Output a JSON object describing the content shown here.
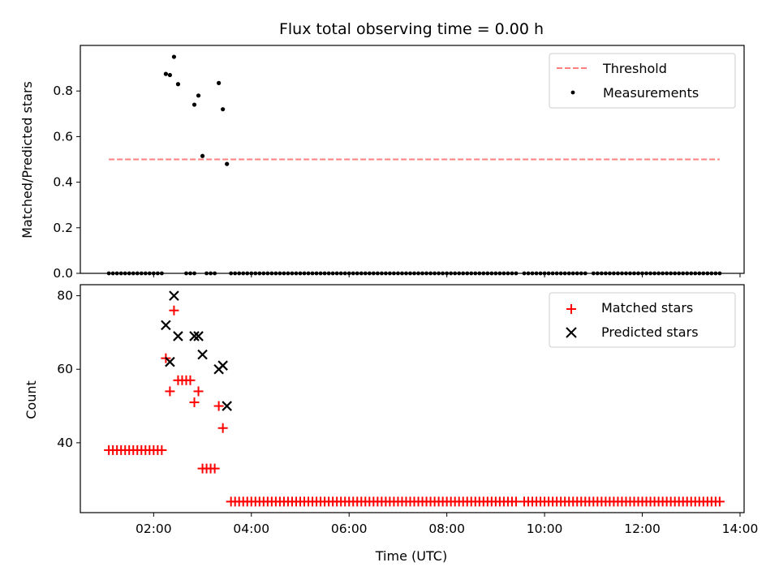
{
  "chart_data": [
    {
      "type": "scatter",
      "title": "Flux total observing time = 0.00 h",
      "xlabel": "",
      "ylabel": "Matched/Predicted stars",
      "ylim": [
        0.0,
        1.0
      ],
      "yticks": [
        "0.0",
        "0.2",
        "0.4",
        "0.6",
        "0.8"
      ],
      "legend": {
        "position": "top-right",
        "labels": [
          "Threshold",
          "Measurements"
        ]
      },
      "threshold": {
        "name": "Threshold",
        "value": 0.5,
        "x_start": "01:05",
        "x_end": "13:35",
        "color": "#ff7f7f"
      },
      "series": [
        {
          "name": "Measurements",
          "color": "#000000",
          "points": [
            [
              "02:15",
              0.875
            ],
            [
              "02:20",
              0.87
            ],
            [
              "02:25",
              0.95
            ],
            [
              "02:30",
              0.83
            ],
            [
              "02:50",
              0.74
            ],
            [
              "02:55",
              0.78
            ],
            [
              "03:00",
              0.515
            ],
            [
              "03:20",
              0.835
            ],
            [
              "03:25",
              0.72
            ],
            [
              "03:30",
              0.48
            ]
          ],
          "zero_segments": [
            [
              "01:05",
              "02:10"
            ],
            [
              "02:40",
              "02:50"
            ],
            [
              "03:05",
              "03:15"
            ],
            [
              "03:35",
              "09:25"
            ],
            [
              "09:35",
              "09:40"
            ],
            [
              "09:45",
              "09:55"
            ],
            [
              "10:00",
              "10:50"
            ],
            [
              "11:00",
              "11:35"
            ],
            [
              "11:40",
              "12:40"
            ],
            [
              "12:45",
              "13:35"
            ]
          ],
          "zero_step_minutes": 5
        }
      ]
    },
    {
      "type": "scatter",
      "xlabel": "Time (UTC)",
      "ylabel": "Count",
      "ylim": [
        21,
        83
      ],
      "xlim": [
        "00:30",
        "14:05"
      ],
      "xticks": [
        "02:00",
        "04:00",
        "06:00",
        "08:00",
        "10:00",
        "12:00",
        "14:00"
      ],
      "yticks": [
        "40",
        "60",
        "80"
      ],
      "legend": {
        "position": "top-right",
        "labels": [
          "Matched stars",
          "Predicted stars"
        ]
      },
      "series": [
        {
          "name": "Matched stars",
          "marker": "plus",
          "color": "#ff0000",
          "points": [
            [
              "02:15",
              63
            ],
            [
              "02:20",
              54
            ],
            [
              "02:25",
              76
            ],
            [
              "02:30",
              57
            ],
            [
              "02:35",
              57
            ],
            [
              "02:40",
              57
            ],
            [
              "02:45",
              57
            ],
            [
              "02:50",
              51
            ],
            [
              "02:55",
              54
            ],
            [
              "03:00",
              33
            ],
            [
              "03:05",
              33
            ],
            [
              "03:10",
              33
            ],
            [
              "03:15",
              33
            ],
            [
              "03:20",
              50
            ],
            [
              "03:25",
              44
            ]
          ],
          "segments": [
            {
              "from": "01:05",
              "to": "02:10",
              "value": 38
            },
            {
              "from": "03:35",
              "to": "09:25",
              "value": 24
            },
            {
              "from": "09:35",
              "to": "13:35",
              "value": 24
            }
          ],
          "segment_step_minutes": 5
        },
        {
          "name": "Predicted stars",
          "marker": "x",
          "color": "#000000",
          "points": [
            [
              "02:15",
              72
            ],
            [
              "02:20",
              62
            ],
            [
              "02:25",
              80
            ],
            [
              "02:30",
              69
            ],
            [
              "02:50",
              69
            ],
            [
              "02:55",
              69
            ],
            [
              "03:00",
              64
            ],
            [
              "03:20",
              60
            ],
            [
              "03:25",
              61
            ],
            [
              "03:30",
              50
            ]
          ]
        }
      ]
    }
  ]
}
